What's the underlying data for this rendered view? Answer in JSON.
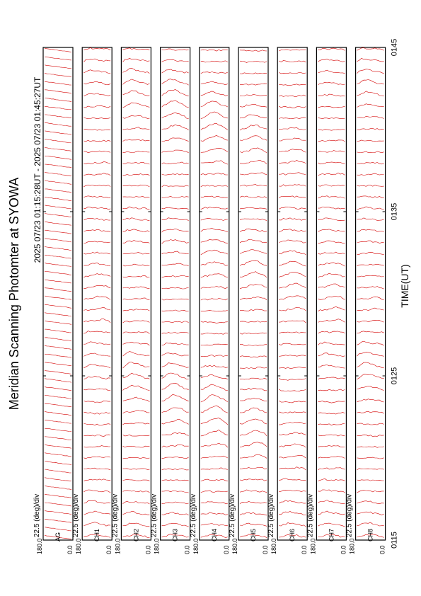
{
  "page": {
    "title": "Meridian Scanning Photomter at SYOWA",
    "subtitle": "2025 07/23 01:15:28UT - 2025 07/23 01:45:27UT",
    "xlabel": "TIME(UT)"
  },
  "chart_data": {
    "type": "line",
    "orientation": "rotated-90",
    "title": "Meridian Scanning Photomter at SYOWA",
    "subtitle": "2025 07/23 01:15:28UT - 2025 07/23 01:45:27UT",
    "xlabel": "TIME(UT)",
    "x_ticks": [
      "0115",
      "0125",
      "0135",
      "0145"
    ],
    "xlim": [
      "0115",
      "0145"
    ],
    "scale_label": "22.5 (deg)/div",
    "ylim": [
      0.0,
      180.0
    ],
    "trace_color": "#d40000",
    "panels": [
      {
        "channel": "AG",
        "scale": "22.5 (deg)/div",
        "y_top": "180.0",
        "y_bottom": "0.0"
      },
      {
        "channel": "CH1",
        "scale": "22.5 (deg)/div",
        "y_top": "180.0",
        "y_bottom": "0.0"
      },
      {
        "channel": "CH2",
        "scale": "22.5 (deg)/div",
        "y_top": "180.0",
        "y_bottom": "0.0"
      },
      {
        "channel": "CH3",
        "scale": "22.5 (deg)/div",
        "y_top": "180.0",
        "y_bottom": "0.0"
      },
      {
        "channel": "CH4",
        "scale": "22.5 (deg)/div",
        "y_top": "180.0",
        "y_bottom": "0.0"
      },
      {
        "channel": "CH5",
        "scale": "22.5 (deg)/div",
        "y_top": "180.0",
        "y_bottom": "0.0"
      },
      {
        "channel": "CH6",
        "scale": "22.5 (deg)/div",
        "y_top": "180.0",
        "y_bottom": "0.0"
      },
      {
        "channel": "CH7",
        "scale": "22.5 (deg)/div",
        "y_top": "180.0",
        "y_bottom": "0.0"
      },
      {
        "channel": "CH8",
        "scale": "22.5 (deg)/div",
        "y_top": "180.0",
        "y_bottom": "0.0"
      }
    ]
  }
}
